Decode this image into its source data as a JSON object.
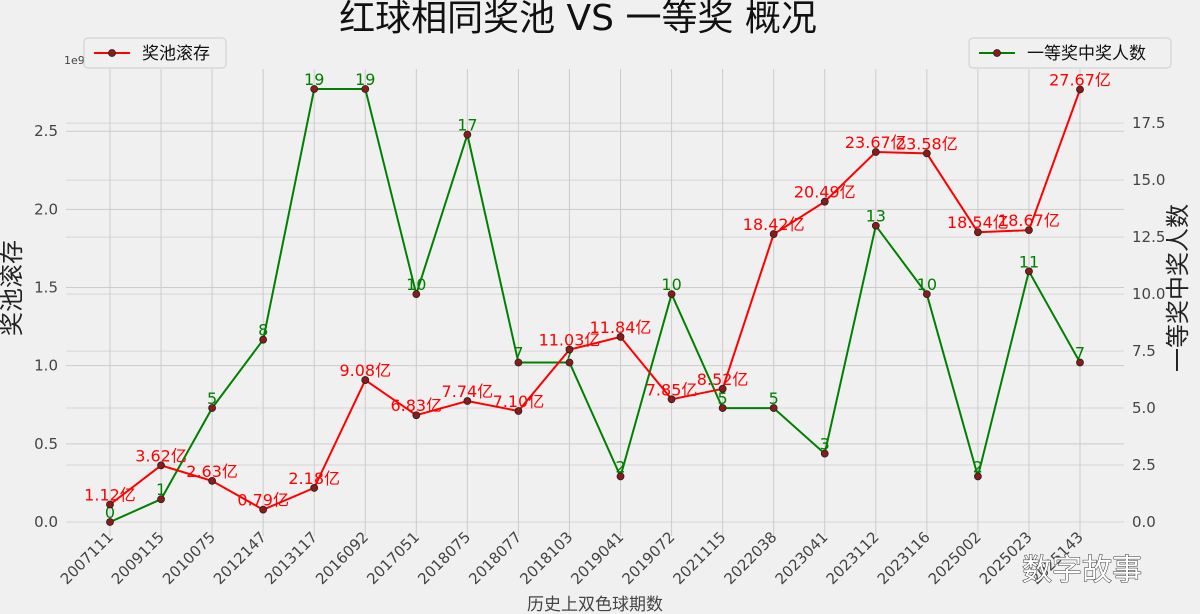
{
  "chart_data": {
    "type": "line",
    "title": "红球相同奖池 VS 一等奖 概况",
    "xlabel": "历史上双色球期数",
    "ylabel_left": "奖池滚存",
    "ylabel_right": "一等奖中奖人数",
    "left_axis_exponent": "1e9",
    "ylim_left": [
      0,
      2770000000.0
    ],
    "yticks_left": [
      "0.0",
      "0.5",
      "1.0",
      "1.5",
      "2.0",
      "2.5"
    ],
    "ylim_right": [
      0,
      19
    ],
    "yticks_right": [
      "0.0",
      "2.5",
      "5.0",
      "7.5",
      "10.0",
      "12.5",
      "15.0",
      "17.5"
    ],
    "categories": [
      "2007111",
      "2009115",
      "2010075",
      "2012147",
      "2013117",
      "2016092",
      "2017051",
      "2018075",
      "2018077",
      "2018103",
      "2019041",
      "2019072",
      "2021115",
      "2022038",
      "2023041",
      "2023112",
      "2023116",
      "2025002",
      "2025023",
      "2025143"
    ],
    "grid": true,
    "series": [
      {
        "name": "奖池滚存",
        "axis": "left",
        "color": "#ff0000",
        "values": [
          112000000,
          362000000,
          263000000,
          79000000,
          218000000,
          908000000,
          683000000,
          774000000,
          710000000,
          1103000000,
          1184000000,
          785000000,
          852000000,
          1842000000,
          2049000000,
          2367000000,
          2358000000,
          1854000000,
          1867000000,
          2767000000
        ],
        "labels": [
          "1.12亿",
          "3.62亿",
          "2.63亿",
          "0.79亿",
          "2.18亿",
          "9.08亿",
          "6.83亿",
          "7.74亿",
          "7.10亿",
          "11.03亿",
          "11.84亿",
          "7.85亿",
          "8.52亿",
          "18.42亿",
          "20.49亿",
          "23.67亿",
          "23.58亿",
          "18.54亿",
          "18.67亿",
          "27.67亿"
        ],
        "legend_position": "top-left"
      },
      {
        "name": "一等奖中奖人数",
        "axis": "right",
        "color": "#008000",
        "values": [
          0,
          1,
          5,
          8,
          19,
          19,
          10,
          17,
          7,
          7,
          2,
          10,
          5,
          5,
          3,
          13,
          10,
          2,
          11,
          7
        ],
        "labels": [
          "0",
          "1",
          "5",
          "8",
          "19",
          "19",
          "10",
          "17",
          "7",
          "7",
          "2",
          "10",
          "5",
          "5",
          "3",
          "13",
          "10",
          "2",
          "11",
          "7"
        ],
        "legend_position": "top-right"
      }
    ]
  },
  "watermark": "数字故事"
}
